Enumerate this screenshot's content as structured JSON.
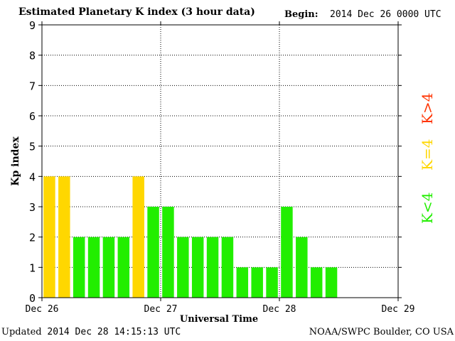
{
  "header": {
    "title": "Estimated Planetary K index (3 hour data)",
    "begin_label": "Begin:",
    "begin_value": "2014 Dec 26 0000 UTC"
  },
  "footer": {
    "updated_label": "Updated",
    "updated_value": "2014 Dec 28 14:15:13 UTC",
    "credit": "NOAA/SWPC Boulder, CO USA"
  },
  "legend": [
    {
      "label": "K>4",
      "color": "#ff3300"
    },
    {
      "label": "K=4",
      "color": "#ffd700"
    },
    {
      "label": "K<4",
      "color": "#22ee00"
    }
  ],
  "chart_data": {
    "type": "bar",
    "title": "Estimated Planetary K index (3 hour data)",
    "xlabel": "Universal Time",
    "ylabel": "Kp index",
    "ylim": [
      0,
      9
    ],
    "yticks": [
      0,
      1,
      2,
      3,
      4,
      5,
      6,
      7,
      8,
      9
    ],
    "x_ticks": [
      "Dec 26",
      "Dec 27",
      "Dec 28",
      "Dec 29"
    ],
    "interval_hours": 3,
    "grid": true,
    "colors": {
      "below": "#22ee00",
      "equal": "#ffd700",
      "above": "#ff3300"
    },
    "values": [
      4,
      4,
      2,
      2,
      2,
      2,
      4,
      3,
      3,
      2,
      2,
      2,
      2,
      1,
      1,
      1,
      3,
      2,
      1,
      1
    ]
  }
}
